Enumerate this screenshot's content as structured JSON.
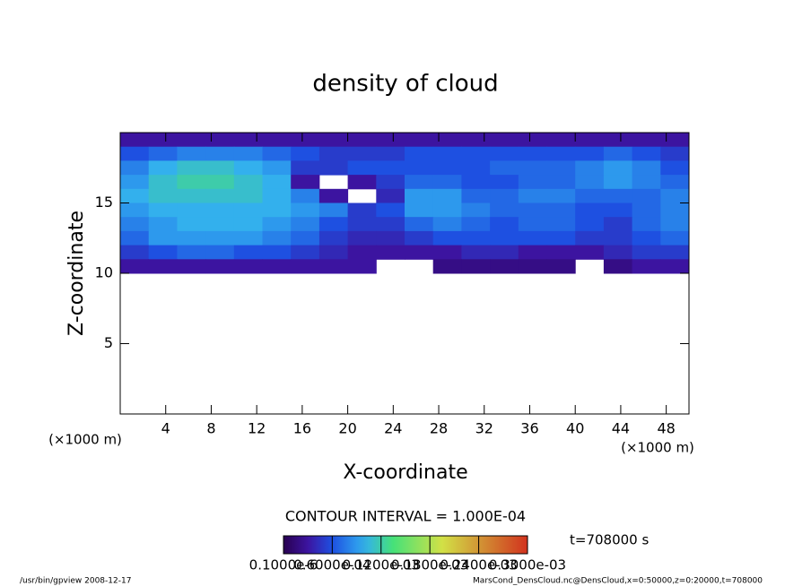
{
  "chart_data": {
    "type": "heatmap",
    "title": "density of cloud",
    "x_label": "X-coordinate",
    "y_label": "Z-coordinate",
    "x_unit": "(×1000 m)",
    "x_unit_right": "(×1000 m)",
    "xlim": [
      0,
      50
    ],
    "ylim": [
      0,
      20
    ],
    "xticks": [
      4,
      8,
      12,
      16,
      20,
      24,
      28,
      32,
      36,
      40,
      44,
      48
    ],
    "yticks": [
      5,
      10,
      15
    ],
    "x": [
      1.25,
      3.75,
      6.25,
      8.75,
      11.25,
      13.75,
      16.25,
      18.75,
      21.25,
      23.75,
      26.25,
      28.75,
      31.25,
      33.75,
      36.25,
      38.75,
      41.25,
      43.75,
      46.25,
      48.75
    ],
    "z": [
      19.5,
      18.5,
      17.5,
      16.5,
      15.5,
      14.5,
      13.5,
      12.5,
      11.5,
      10.5
    ],
    "values": [
      [
        3e-05,
        3e-05,
        3e-05,
        3e-05,
        3e-05,
        3e-05,
        3e-05,
        3e-05,
        3e-05,
        3e-05,
        3e-05,
        3e-05,
        3e-05,
        3e-05,
        3e-05,
        3e-05,
        3e-05,
        3e-05,
        3e-05,
        3e-05
      ],
      [
        6e-05,
        7e-05,
        8e-05,
        8e-05,
        8e-05,
        7e-05,
        6e-05,
        5e-05,
        5e-05,
        5e-05,
        6e-05,
        6e-05,
        6e-05,
        6e-05,
        6e-05,
        6e-05,
        6e-05,
        7e-05,
        6e-05,
        5e-05
      ],
      [
        8e-05,
        0.0001,
        0.00011,
        0.00011,
        0.0001,
        9e-05,
        5e-05,
        5e-05,
        6e-05,
        6e-05,
        6e-05,
        6e-05,
        6e-05,
        7e-05,
        7e-05,
        7e-05,
        8e-05,
        9e-05,
        8e-05,
        6e-05
      ],
      [
        9e-05,
        0.00011,
        0.00012,
        0.00012,
        0.00011,
        0.0001,
        3e-05,
        null,
        3e-05,
        5e-05,
        7e-05,
        7e-05,
        6e-05,
        6e-05,
        7e-05,
        7e-05,
        8e-05,
        9e-05,
        8e-05,
        7e-05
      ],
      [
        0.0001,
        0.00011,
        0.00011,
        0.00011,
        0.00011,
        0.0001,
        8e-05,
        3e-05,
        null,
        4e-05,
        9e-05,
        9e-05,
        7e-05,
        7e-05,
        8e-05,
        8e-05,
        7e-05,
        7e-05,
        7e-05,
        8e-05
      ],
      [
        9e-05,
        0.0001,
        0.0001,
        0.0001,
        0.0001,
        0.0001,
        9e-05,
        8e-05,
        5e-05,
        6e-05,
        9e-05,
        9e-05,
        8e-05,
        7e-05,
        7e-05,
        7e-05,
        6e-05,
        6e-05,
        7e-05,
        8e-05
      ],
      [
        8e-05,
        9e-05,
        0.0001,
        0.0001,
        0.0001,
        9e-05,
        8e-05,
        6e-05,
        5e-05,
        5e-05,
        7e-05,
        8e-05,
        7e-05,
        6e-05,
        7e-05,
        7e-05,
        6e-05,
        5e-05,
        7e-05,
        8e-05
      ],
      [
        7e-05,
        9e-05,
        9e-05,
        9e-05,
        9e-05,
        8e-05,
        7e-05,
        5e-05,
        4e-05,
        4e-05,
        5e-05,
        6e-05,
        6e-05,
        6e-05,
        6e-05,
        6e-05,
        5e-05,
        5e-05,
        6e-05,
        7e-05
      ],
      [
        5e-05,
        6e-05,
        7e-05,
        7e-05,
        6e-05,
        6e-05,
        5e-05,
        4e-05,
        3e-05,
        3e-05,
        3e-05,
        3e-05,
        4e-05,
        4e-05,
        3e-05,
        3e-05,
        3e-05,
        4e-05,
        5e-05,
        5e-05
      ],
      [
        3e-05,
        3e-05,
        3e-05,
        3e-05,
        3e-05,
        3e-05,
        3e-05,
        3e-05,
        3e-05,
        null,
        null,
        2e-05,
        2e-05,
        2e-05,
        2e-05,
        2e-05,
        null,
        2e-05,
        3e-05,
        3e-05
      ]
    ],
    "contour_interval": "CONTOUR INTERVAL = 1.000E-04",
    "colorbar": {
      "lim": [
        1e-07,
        0.0003
      ],
      "ticks": [
        {
          "value": 1e-07,
          "label": "0.1000e-6"
        },
        {
          "value": 6e-05,
          "label": "0.6000e-04"
        },
        {
          "value": 0.00012,
          "label": "0.1200e-03"
        },
        {
          "value": 0.00018,
          "label": "0.1800e-03"
        },
        {
          "value": 0.00024,
          "label": "0.2400e-03"
        },
        {
          "value": 0.0003,
          "label": "0.3000e-03"
        }
      ]
    },
    "time_label": "t=708000 s",
    "footer_left": "/usr/bin/gpview  2008-12-17",
    "footer_right": "MarsCond_DensCloud.nc@DensCloud,x=0:50000,z=0:20000,t=708000"
  }
}
